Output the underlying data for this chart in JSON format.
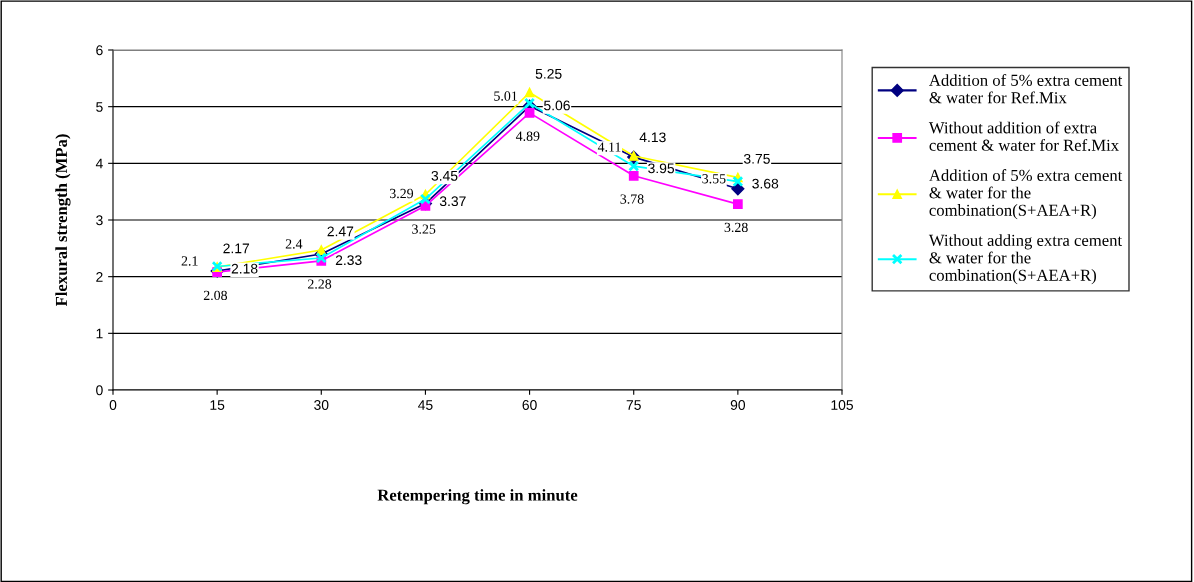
{
  "chart_data": {
    "type": "line",
    "xlabel": "Retempering time in minute",
    "ylabel": "Flexural strength (MPa)",
    "x": [
      15,
      30,
      45,
      60,
      75,
      90
    ],
    "series": [
      {
        "name": "Addition of 5% extra cement & water for Ref.Mix",
        "color": "#000080",
        "marker": "diamond",
        "values": [
          2.1,
          2.4,
          3.29,
          5.01,
          4.11,
          3.55
        ]
      },
      {
        "name": "Without addition of extra cement & water for Ref.Mix",
        "color": "#ff00ff",
        "marker": "square",
        "values": [
          2.08,
          2.28,
          3.25,
          4.89,
          3.78,
          3.28
        ]
      },
      {
        "name": "Addition of 5% extra cement & water for the combination(S+AEA+R)",
        "color": "#ffff00",
        "marker": "triangle",
        "values": [
          2.17,
          2.47,
          3.45,
          5.25,
          4.13,
          3.75
        ]
      },
      {
        "name": "Without adding extra cement & water for the combination(S+AEA+R)",
        "color": "#00ffff",
        "marker": "cross",
        "values": [
          2.18,
          2.33,
          3.37,
          5.06,
          3.95,
          3.68
        ]
      }
    ],
    "xlim": [
      0,
      105
    ],
    "xticks": [
      0,
      15,
      30,
      45,
      60,
      75,
      90,
      105
    ],
    "ylim": [
      0,
      6
    ],
    "yticks": [
      0,
      1,
      2,
      3,
      4,
      5,
      6
    ],
    "grid": "y",
    "legend": "right",
    "data_labels": true,
    "line_style": "solid"
  }
}
